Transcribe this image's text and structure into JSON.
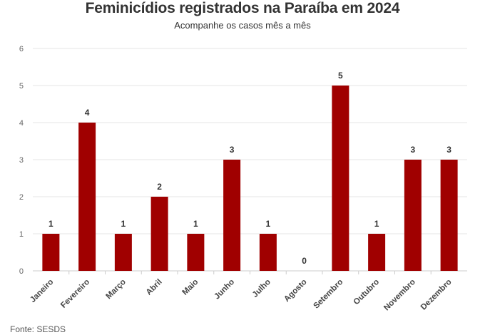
{
  "chart_data": {
    "type": "bar",
    "title": "Feminicídios registrados na Paraíba em 2024",
    "subtitle": "Acompanhe os casos mês a mês",
    "source": "Fonte: SESDS",
    "categories": [
      "Janeiro",
      "Fevereiro",
      "Março",
      "Abril",
      "Maio",
      "Junho",
      "Julho",
      "Agosto",
      "Setembro",
      "Outubro",
      "Novembro",
      "Dezembro"
    ],
    "values": [
      1,
      4,
      1,
      2,
      1,
      3,
      1,
      0,
      5,
      1,
      3,
      3
    ],
    "data_labels": [
      "1",
      "4",
      "1",
      "2",
      "1",
      "3",
      "1",
      "0",
      "5",
      "1",
      "3",
      "3"
    ],
    "ylim": [
      0,
      6
    ],
    "yticks": [
      "0",
      "1",
      "2",
      "3",
      "4",
      "5",
      "6"
    ],
    "xlabel": "",
    "ylabel": "",
    "grid": true,
    "legend": "none",
    "bar_color": "#a00000",
    "grid_color": "#e6e6e6",
    "axis_color": "#cccccc"
  }
}
